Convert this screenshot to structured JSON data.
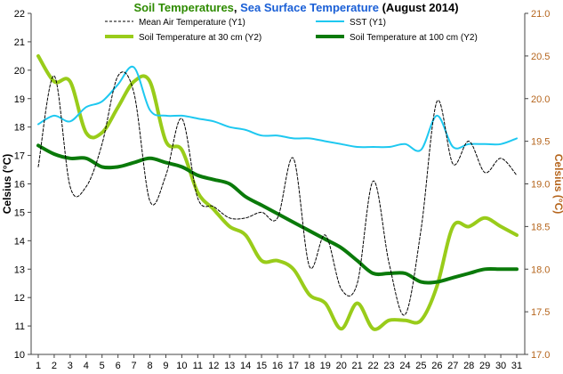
{
  "chart_data": {
    "type": "line",
    "title_parts": [
      {
        "text": "Soil Temperatures",
        "color": "#2e8b00"
      },
      {
        "text": ", ",
        "color": "#000000"
      },
      {
        "text": "Sea Surface Temperature",
        "color": "#1a5fd6"
      },
      {
        "text": " (August 2014)",
        "color": "#000000"
      }
    ],
    "ylabel": "Celsius (°C)",
    "y2label": "Celsius (°C)",
    "ylim": [
      10,
      22
    ],
    "y2lim": [
      17.0,
      21.0
    ],
    "yticks": [
      "10",
      "11",
      "12",
      "13",
      "14",
      "15",
      "16",
      "17",
      "18",
      "19",
      "20",
      "21",
      "22"
    ],
    "y2ticks": [
      "17.0",
      "17.5",
      "18.0",
      "18.5",
      "19.0",
      "19.5",
      "20.0",
      "20.5",
      "21.0"
    ],
    "x": [
      1,
      2,
      3,
      4,
      5,
      6,
      7,
      8,
      9,
      10,
      11,
      12,
      13,
      14,
      15,
      16,
      17,
      18,
      19,
      20,
      21,
      22,
      23,
      24,
      25,
      26,
      27,
      28,
      29,
      30,
      31
    ],
    "xtick_labels": [
      "1",
      "2",
      "3",
      "4",
      "5",
      "6",
      "7",
      "8",
      "9",
      "10",
      "11",
      "12",
      "13",
      "14",
      "15",
      "16",
      "17",
      "18",
      "19",
      "20",
      "21",
      "22",
      "23",
      "24",
      "25",
      "26",
      "27",
      "28",
      "29",
      "30",
      "31"
    ],
    "grid": false,
    "legend_position": "top",
    "series": [
      {
        "name": "Mean Air Temperature (Y1)",
        "axis": "y1",
        "color": "#000000",
        "dashed": true,
        "width": 1,
        "values": [
          16.6,
          19.8,
          15.9,
          15.9,
          17.4,
          19.8,
          19.2,
          15.4,
          16.3,
          18.3,
          15.5,
          15.2,
          14.8,
          14.8,
          15.0,
          14.8,
          16.9,
          13.1,
          14.2,
          12.3,
          12.5,
          16.1,
          13.2,
          11.4,
          14.4,
          18.9,
          16.7,
          17.5,
          16.4,
          16.9,
          16.3
        ]
      },
      {
        "name": "SST (Y1)",
        "axis": "y1",
        "color": "#1ec8f0",
        "dashed": false,
        "width": 2,
        "values": [
          18.1,
          18.4,
          18.2,
          18.7,
          18.9,
          19.5,
          20.1,
          18.6,
          18.4,
          18.4,
          18.3,
          18.2,
          18.0,
          17.9,
          17.7,
          17.7,
          17.6,
          17.6,
          17.5,
          17.4,
          17.3,
          17.3,
          17.3,
          17.4,
          17.2,
          18.4,
          17.3,
          17.4,
          17.4,
          17.4,
          17.6
        ]
      },
      {
        "name": "Soil Temperature at 30 cm (Y2)",
        "axis": "y2",
        "color": "#99cc1a",
        "dashed": false,
        "width": 4,
        "values": [
          20.5,
          20.2,
          20.2,
          19.6,
          19.6,
          19.9,
          20.2,
          20.2,
          19.5,
          19.4,
          18.9,
          18.7,
          18.5,
          18.4,
          18.1,
          18.1,
          18.0,
          17.7,
          17.6,
          17.3,
          17.6,
          17.3,
          17.4,
          17.4,
          17.4,
          17.8,
          18.5,
          18.5,
          18.6,
          18.5,
          18.4
        ]
      },
      {
        "name": "Soil Temperature at 100 cm (Y2)",
        "axis": "y2",
        "color": "#0a7a0a",
        "dashed": false,
        "width": 4,
        "values": [
          19.45,
          19.35,
          19.3,
          19.3,
          19.2,
          19.2,
          19.25,
          19.3,
          19.25,
          19.2,
          19.1,
          19.05,
          19.0,
          18.85,
          18.75,
          18.65,
          18.55,
          18.45,
          18.35,
          18.25,
          18.1,
          17.95,
          17.95,
          17.95,
          17.85,
          17.85,
          17.9,
          17.95,
          18.0,
          18.0,
          18.0
        ]
      }
    ]
  }
}
